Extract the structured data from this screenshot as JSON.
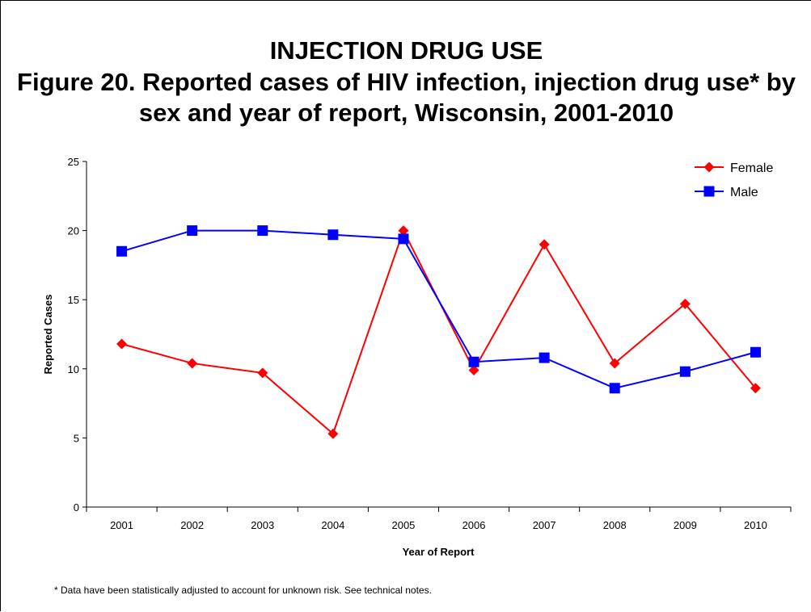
{
  "chart_data": {
    "type": "line",
    "title": "INJECTION DRUG USE",
    "subtitle": "Figure 20. Reported cases of HIV infection, injection drug use* by sex and year of report, Wisconsin, 2001-2010",
    "xlabel": "Year of Report",
    "ylabel": "Reported Cases",
    "ylim": [
      0,
      25
    ],
    "yticks": [
      "0",
      "5",
      "10",
      "15",
      "20",
      "25"
    ],
    "categories": [
      "2001",
      "2002",
      "2003",
      "2004",
      "2005",
      "2006",
      "2007",
      "2008",
      "2009",
      "2010"
    ],
    "grid": false,
    "legend_position": "top-right",
    "series": [
      {
        "name": "Female",
        "color": "#ff0000",
        "marker": "diamond",
        "values": [
          11.8,
          10.4,
          9.7,
          5.3,
          20.0,
          9.9,
          19.0,
          10.4,
          14.7,
          8.6
        ]
      },
      {
        "name": "Male",
        "color": "#0000ff",
        "marker": "square",
        "values": [
          18.5,
          20.0,
          20.0,
          19.7,
          19.4,
          10.5,
          10.8,
          8.6,
          9.8,
          11.2
        ]
      }
    ]
  },
  "footnote": "* Data have been statistically adjusted to account for unknown risk. See technical notes."
}
